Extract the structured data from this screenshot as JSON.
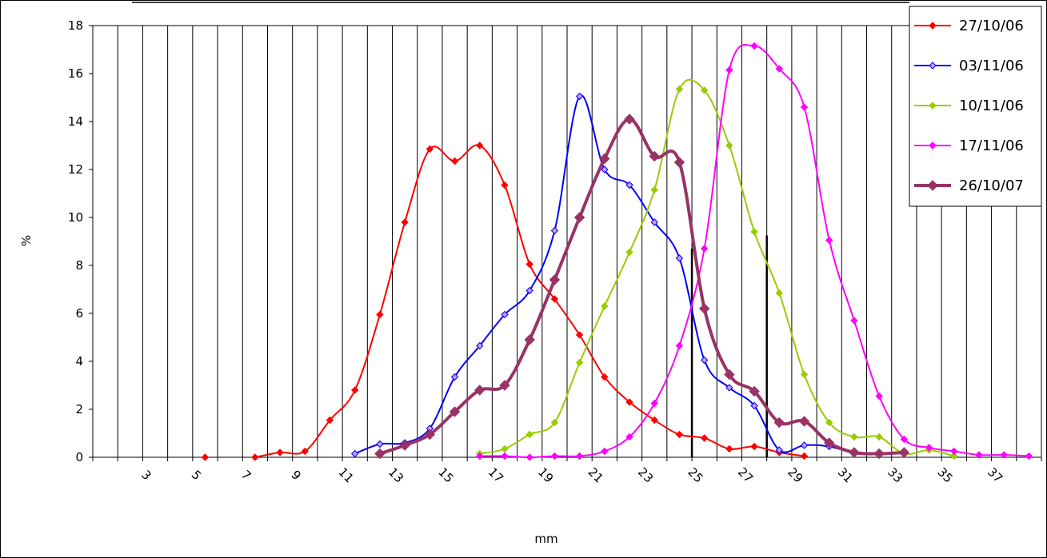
{
  "chart_data": {
    "type": "line",
    "title": "",
    "xlabel": "mm",
    "ylabel": "%",
    "xlim": [
      1,
      39
    ],
    "ylim": [
      0,
      18
    ],
    "y_ticks": [
      "0",
      "2",
      "4",
      "6",
      "8",
      "10",
      "12",
      "14",
      "16",
      "18"
    ],
    "x_ticks": [
      "3",
      "5",
      "7",
      "9",
      "11",
      "13",
      "15",
      "17",
      "19",
      "21",
      "23",
      "25",
      "27",
      "29",
      "31",
      "33",
      "35",
      "37"
    ],
    "x_tick_values": [
      3,
      5,
      7,
      9,
      11,
      13,
      15,
      17,
      19,
      21,
      23,
      25,
      27,
      29,
      31,
      33,
      35,
      37
    ],
    "grid": {
      "vertical": true,
      "horizontal": false
    },
    "legend_position": "top-right",
    "series": [
      {
        "name": "27/10/06",
        "color": "#ff0000",
        "marker": "diamond",
        "points": [
          [
            5.5,
            0
          ],
          [
            7.5,
            0
          ],
          [
            8.5,
            0.2
          ],
          [
            9.5,
            0.25
          ],
          [
            10.5,
            1.55
          ],
          [
            11.5,
            2.8
          ],
          [
            12.5,
            5.95
          ],
          [
            13.5,
            9.8
          ],
          [
            14.5,
            12.85
          ],
          [
            15.5,
            12.35
          ],
          [
            16.5,
            13.0
          ],
          [
            17.5,
            11.35
          ],
          [
            18.5,
            8.05
          ],
          [
            19.5,
            6.6
          ],
          [
            20.5,
            5.1
          ],
          [
            21.5,
            3.35
          ],
          [
            22.5,
            2.3
          ],
          [
            23.5,
            1.55
          ],
          [
            24.5,
            0.95
          ],
          [
            25.5,
            0.8
          ],
          [
            26.5,
            0.35
          ],
          [
            27.5,
            0.45
          ],
          [
            28.5,
            0.2
          ],
          [
            29.5,
            0.05
          ]
        ],
        "gap_after_index": 0
      },
      {
        "name": "03/11/06",
        "color": "#0000ff",
        "marker": "diamond",
        "points": [
          [
            11.5,
            0.15
          ],
          [
            12.5,
            0.55
          ],
          [
            13.5,
            0.6
          ],
          [
            14.5,
            1.2
          ],
          [
            15.5,
            3.35
          ],
          [
            16.5,
            4.65
          ],
          [
            17.5,
            5.95
          ],
          [
            18.5,
            6.95
          ],
          [
            19.5,
            9.45
          ],
          [
            20.5,
            15.05
          ],
          [
            21.5,
            12.0
          ],
          [
            22.5,
            11.35
          ],
          [
            23.5,
            9.8
          ],
          [
            24.5,
            8.3
          ],
          [
            25.5,
            4.05
          ],
          [
            26.5,
            2.9
          ],
          [
            27.5,
            2.15
          ],
          [
            28.5,
            0.3
          ],
          [
            29.5,
            0.5
          ],
          [
            30.5,
            0.45
          ],
          [
            31.5,
            0.15
          ]
        ]
      },
      {
        "name": "10/11/06",
        "color": "#99cc00",
        "marker": "diamond",
        "points": [
          [
            16.5,
            0.15
          ],
          [
            17.5,
            0.35
          ],
          [
            18.5,
            0.95
          ],
          [
            19.5,
            1.45
          ],
          [
            20.5,
            3.95
          ],
          [
            21.5,
            6.3
          ],
          [
            22.5,
            8.55
          ],
          [
            23.5,
            11.15
          ],
          [
            24.5,
            15.35
          ],
          [
            25.5,
            15.3
          ],
          [
            26.5,
            13.0
          ],
          [
            27.5,
            9.4
          ],
          [
            28.5,
            6.85
          ],
          [
            29.5,
            3.45
          ],
          [
            30.5,
            1.45
          ],
          [
            31.5,
            0.85
          ],
          [
            32.5,
            0.85
          ],
          [
            33.5,
            0.15
          ],
          [
            34.5,
            0.3
          ],
          [
            35.5,
            0.05
          ]
        ]
      },
      {
        "name": "17/11/06",
        "color": "#ff00ff",
        "marker": "diamond",
        "points": [
          [
            16.5,
            0.05
          ],
          [
            17.5,
            0.05
          ],
          [
            18.5,
            0.0
          ],
          [
            19.5,
            0.05
          ],
          [
            20.5,
            0.05
          ],
          [
            21.5,
            0.25
          ],
          [
            22.5,
            0.85
          ],
          [
            23.5,
            2.25
          ],
          [
            24.5,
            4.65
          ],
          [
            25.5,
            8.7
          ],
          [
            26.5,
            16.15
          ],
          [
            27.5,
            17.15
          ],
          [
            28.5,
            16.2
          ],
          [
            29.5,
            14.6
          ],
          [
            30.5,
            9.05
          ],
          [
            31.5,
            5.7
          ],
          [
            32.5,
            2.55
          ],
          [
            33.5,
            0.75
          ],
          [
            34.5,
            0.4
          ],
          [
            35.5,
            0.25
          ],
          [
            36.5,
            0.1
          ],
          [
            37.5,
            0.1
          ],
          [
            38.5,
            0.05
          ]
        ]
      },
      {
        "name": "26/10/07",
        "color": "#993366",
        "marker": "diamond",
        "bold": true,
        "points": [
          [
            12.5,
            0.15
          ],
          [
            13.5,
            0.5
          ],
          [
            14.5,
            0.95
          ],
          [
            15.5,
            1.9
          ],
          [
            16.5,
            2.8
          ],
          [
            17.5,
            3.0
          ],
          [
            18.5,
            4.9
          ],
          [
            19.5,
            7.4
          ],
          [
            20.5,
            10.0
          ],
          [
            21.5,
            12.45
          ],
          [
            22.5,
            14.1
          ],
          [
            23.5,
            12.55
          ],
          [
            24.5,
            12.3
          ],
          [
            25.5,
            6.2
          ],
          [
            26.5,
            3.45
          ],
          [
            27.5,
            2.75
          ],
          [
            28.5,
            1.45
          ],
          [
            29.5,
            1.5
          ],
          [
            30.5,
            0.6
          ],
          [
            31.5,
            0.2
          ],
          [
            32.5,
            0.15
          ],
          [
            33.5,
            0.2
          ]
        ]
      }
    ],
    "annotations": [
      {
        "type": "vertical-marker",
        "x": 25.0,
        "y_top": 8.7
      },
      {
        "type": "vertical-marker",
        "x": 28.0,
        "y_top": 9.25
      }
    ]
  }
}
